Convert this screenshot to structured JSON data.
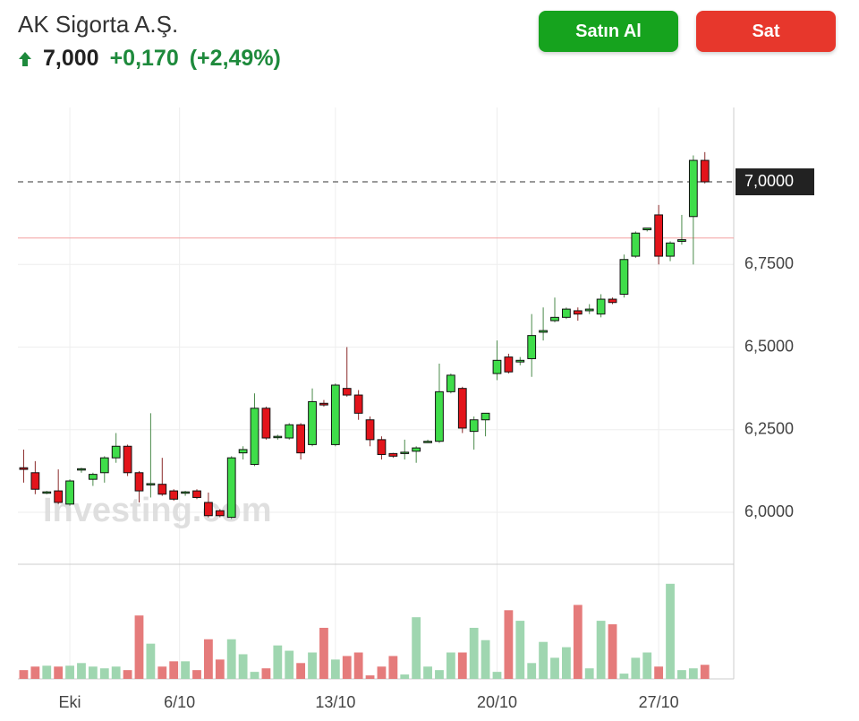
{
  "header": {
    "name": "AK Sigorta A.Ş.",
    "price": "7,000",
    "change": "+0,170",
    "change_percent": "(+2,49%)",
    "buy_button": "Satın Al",
    "sell_button": "Sat"
  },
  "chart_data": {
    "type": "candlestick",
    "watermark": "Investing.com",
    "x": [
      0,
      1,
      2,
      3,
      4,
      5,
      6,
      7,
      8,
      9,
      10,
      11,
      12,
      13,
      14,
      15,
      16,
      17,
      18,
      19,
      20,
      21,
      22,
      23,
      24,
      25,
      26,
      27,
      28,
      29,
      30,
      31,
      32,
      33,
      34,
      35,
      36,
      37,
      38,
      39,
      40,
      41,
      42,
      43,
      44,
      45,
      46,
      47,
      48,
      49,
      50,
      51,
      52,
      53,
      54,
      55,
      56,
      57,
      58,
      59
    ],
    "open": [
      6.135,
      6.12,
      6.06,
      6.065,
      6.025,
      6.128,
      6.1,
      6.12,
      6.165,
      6.2,
      6.12,
      6.083,
      6.085,
      6.065,
      6.058,
      6.065,
      6.03,
      6.005,
      5.985,
      6.18,
      6.145,
      6.315,
      6.227,
      6.225,
      6.265,
      6.205,
      6.33,
      6.205,
      6.375,
      6.355,
      6.28,
      6.22,
      6.178,
      6.18,
      6.185,
      6.213,
      6.215,
      6.365,
      6.375,
      6.245,
      6.28,
      6.42,
      6.47,
      6.455,
      6.465,
      6.545,
      6.58,
      6.59,
      6.61,
      6.61,
      6.6,
      6.645,
      6.66,
      6.775,
      6.855,
      6.9,
      6.775,
      6.82,
      6.895,
      7.065
    ],
    "high": [
      6.19,
      6.155,
      6.065,
      6.13,
      6.1,
      6.135,
      6.12,
      6.17,
      6.24,
      6.205,
      6.125,
      6.3,
      6.165,
      6.07,
      6.065,
      6.07,
      6.06,
      6.01,
      6.17,
      6.2,
      6.36,
      6.32,
      6.235,
      6.27,
      6.27,
      6.375,
      6.34,
      6.39,
      6.5,
      6.37,
      6.29,
      6.23,
      6.18,
      6.22,
      6.2,
      6.22,
      6.45,
      6.42,
      6.38,
      6.29,
      6.3,
      6.52,
      6.48,
      6.47,
      6.6,
      6.62,
      6.65,
      6.62,
      6.62,
      6.63,
      6.66,
      6.65,
      6.78,
      6.85,
      6.86,
      6.93,
      6.82,
      6.9,
      7.08,
      7.09
    ],
    "low": [
      6.09,
      6.055,
      6.055,
      6.025,
      6.02,
      6.12,
      6.08,
      6.09,
      6.15,
      6.11,
      6.03,
      6.045,
      6.05,
      6.035,
      6.05,
      6.04,
      5.985,
      5.985,
      5.98,
      6.16,
      6.14,
      6.22,
      6.22,
      6.22,
      6.16,
      6.2,
      6.32,
      6.2,
      6.35,
      6.28,
      6.2,
      6.16,
      6.165,
      6.16,
      6.15,
      6.21,
      6.21,
      6.36,
      6.24,
      6.19,
      6.23,
      6.4,
      6.42,
      6.445,
      6.41,
      6.52,
      6.575,
      6.585,
      6.58,
      6.6,
      6.59,
      6.63,
      6.65,
      6.77,
      6.85,
      6.75,
      6.76,
      6.81,
      6.75,
      6.995
    ],
    "close": [
      6.13,
      6.07,
      6.062,
      6.03,
      6.095,
      6.132,
      6.115,
      6.165,
      6.2,
      6.12,
      6.065,
      6.087,
      6.055,
      6.04,
      6.062,
      6.045,
      5.99,
      5.99,
      6.165,
      6.19,
      6.315,
      6.225,
      6.23,
      6.265,
      6.18,
      6.335,
      6.325,
      6.385,
      6.355,
      6.3,
      6.22,
      6.175,
      6.17,
      6.182,
      6.195,
      6.215,
      6.365,
      6.415,
      6.255,
      6.28,
      6.3,
      6.46,
      6.425,
      6.46,
      6.535,
      6.55,
      6.59,
      6.615,
      6.6,
      6.615,
      6.645,
      6.635,
      6.765,
      6.845,
      6.86,
      6.775,
      6.815,
      6.825,
      7.065,
      7.0
    ],
    "volume": [
      10,
      14,
      15,
      14,
      15,
      18,
      14,
      12,
      14,
      10,
      72,
      40,
      14,
      20,
      20,
      10,
      45,
      22,
      45,
      28,
      8,
      12,
      38,
      32,
      18,
      30,
      58,
      22,
      26,
      30,
      4,
      14,
      26,
      5,
      70,
      14,
      10,
      30,
      30,
      58,
      44,
      8,
      78,
      66,
      18,
      42,
      24,
      36,
      84,
      12,
      66,
      62,
      6,
      24,
      30,
      14,
      108,
      10,
      12,
      16
    ],
    "up_color": "#3fdd4a",
    "down_color": "#e3141b",
    "volume_up_color": "#9fd6b0",
    "volume_down_color": "#e57b7b",
    "xlim": [
      -0.5,
      61.5
    ],
    "xticks": [
      {
        "value": 4,
        "label": "Eki"
      },
      {
        "value": 13.5,
        "label": "6/10"
      },
      {
        "value": 27,
        "label": "13/10"
      },
      {
        "value": 41,
        "label": "20/10"
      },
      {
        "value": 55,
        "label": "27/10"
      }
    ],
    "ylim": [
      5.843,
      7.225
    ],
    "yticks": [
      {
        "value": 6,
        "label": "6,0000"
      },
      {
        "value": 6.25,
        "label": "6,2500"
      },
      {
        "value": 6.5,
        "label": "6,5000"
      },
      {
        "value": 6.75,
        "label": "6,7500"
      }
    ],
    "volume_lim": [
      0,
      120
    ],
    "last_price": {
      "value": 7,
      "label": "7,0000"
    },
    "previous_close": 6.83,
    "grid": true
  }
}
